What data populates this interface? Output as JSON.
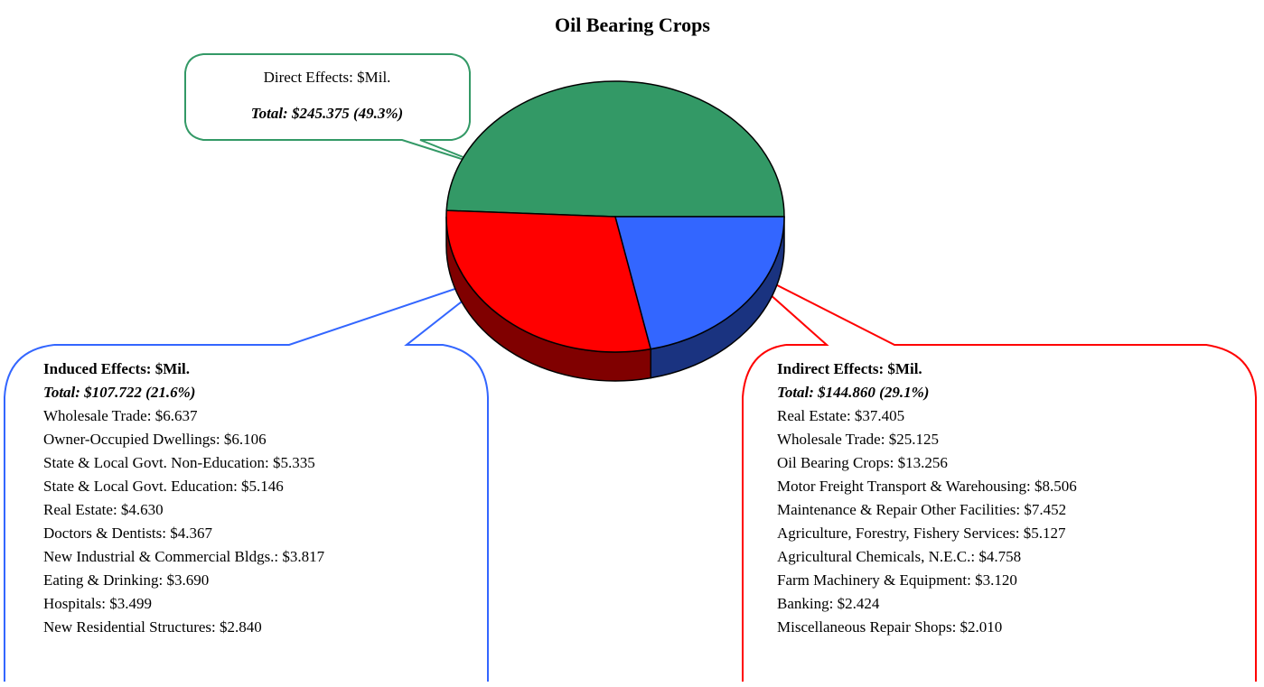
{
  "chart_data": {
    "type": "pie",
    "title": "Oil Bearing Crops",
    "categories": [
      "Direct Effects: $Mil.",
      "Indirect Effects: $Mil.",
      "Induced Effects: $Mil."
    ],
    "values": [
      245.375,
      144.86,
      107.722
    ],
    "value_labels": [
      "Total: $245.375 (49.3%)",
      "Total: $144.860 (29.1%)",
      "Total: $107.722 (21.6%)"
    ],
    "colors": [
      "#339966",
      "#ff0000",
      "#3366ff"
    ],
    "shade_colors": [
      "#1d5c3c",
      "#800000",
      "#1a3380"
    ],
    "indirect_breakdown": [
      "Real Estate: $37.405",
      "Wholesale Trade: $25.125",
      "Oil Bearing Crops: $13.256",
      "Motor Freight Transport & Warehousing: $8.506",
      "Maintenance & Repair Other Facilities: $7.452",
      "Agriculture, Forestry, Fishery Services: $5.127",
      "Agricultural Chemicals, N.E.C.: $4.758",
      "Farm Machinery & Equipment: $3.120",
      "Banking: $2.424",
      "Miscellaneous Repair Shops: $2.010"
    ],
    "induced_breakdown": [
      "Wholesale Trade: $6.637",
      "Owner-Occupied Dwellings: $6.106",
      "State & Local Govt. Non-Education: $5.335",
      "State & Local Govt. Education: $5.146",
      "Real Estate: $4.630",
      "Doctors & Dentists: $4.367",
      "New Industrial & Commercial Bldgs.: $3.817",
      "Eating & Drinking: $3.690",
      "Hospitals: $3.499",
      "New Residential Structures: $2.840"
    ]
  }
}
